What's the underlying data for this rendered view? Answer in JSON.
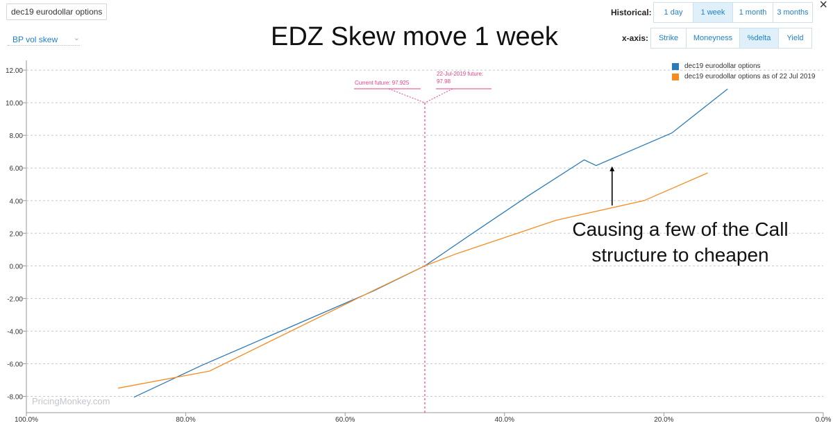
{
  "header": {
    "instrument_chip": "dec19 eurodollar options",
    "metric_dropdown": "BP vol skew",
    "title": "EDZ Skew move 1 week",
    "close_glyph": "×"
  },
  "controls": {
    "historical_label": "Historical:",
    "historical_options": [
      "1 day",
      "1 week",
      "1 month",
      "3 months"
    ],
    "historical_selected": "1 week",
    "xaxis_label": "x-axis:",
    "xaxis_options": [
      "Strike",
      "Moneyness",
      "%delta",
      "Yield"
    ],
    "xaxis_selected": "%delta"
  },
  "legend": [
    {
      "label": "dec19 eurodollar options",
      "color": "#2b7bbb"
    },
    {
      "label": "dec19 eurodollar options as of 22 Jul 2019",
      "color": "#f68b1f"
    }
  ],
  "watermark": "PricingMonkey.com",
  "annotation": {
    "line1": "Causing a few of the Call",
    "line2": "structure to cheapen"
  },
  "chart_data": {
    "type": "line",
    "xlabel": "",
    "ylabel": "",
    "xlim": [
      100,
      0
    ],
    "ylim": [
      -9,
      12.6
    ],
    "x_ticks": [
      "100.0%",
      "80.0%",
      "60.0%",
      "40.0%",
      "20.0%",
      "0.0%"
    ],
    "y_ticks": [
      "12.00",
      "10.00",
      "8.00",
      "6.00",
      "4.00",
      "2.00",
      "0.00",
      "-2.00",
      "-4.00",
      "-6.00",
      "-8.00"
    ],
    "grid": true,
    "legend_position": "top-right",
    "series": [
      {
        "name": "dec19 eurodollar options",
        "color": "#2b7bbb",
        "x": [
          86.5,
          78,
          56.5,
          50,
          44,
          37,
          30,
          28.5,
          19,
          12
        ],
        "y": [
          -8.05,
          -6.1,
          -1.55,
          0.0,
          2.0,
          4.3,
          6.5,
          6.15,
          8.15,
          10.85
        ]
      },
      {
        "name": "dec19 eurodollar options as of 22 Jul 2019",
        "color": "#f68b1f",
        "x": [
          88.5,
          77,
          56,
          50,
          46,
          33.5,
          22.5,
          14.5
        ],
        "y": [
          -7.5,
          -6.45,
          -1.4,
          0.0,
          0.75,
          2.8,
          4.0,
          5.7
        ]
      }
    ],
    "vertical_marker": {
      "x": 50,
      "label_left": "Current future: 97.925",
      "label_right_line1": "22-Jul-2019 future:",
      "label_right_line2": "97.98",
      "color": "#e83e8c"
    },
    "arrow": {
      "x": 26.5,
      "y_from": 3.7,
      "y_to": 6.1
    }
  }
}
